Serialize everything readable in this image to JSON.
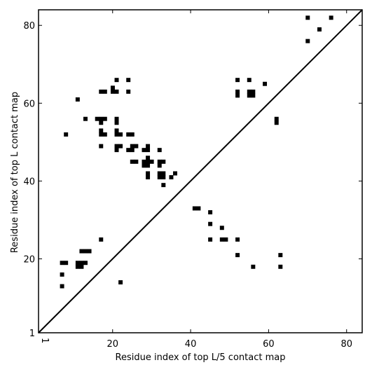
{
  "chart_data": {
    "type": "heatmap",
    "xlabel": "Residue index of top L/5 contact map",
    "ylabel": "Residue index of top L contact map",
    "xlim": [
      1,
      84
    ],
    "ylim": [
      1,
      84
    ],
    "x_ticks": [
      {
        "value": 1,
        "label": "1"
      },
      {
        "value": 20,
        "label": "20"
      },
      {
        "value": 40,
        "label": "40"
      },
      {
        "value": 60,
        "label": "60"
      },
      {
        "value": 80,
        "label": "80"
      }
    ],
    "y_ticks": [
      {
        "value": 1,
        "label": "1"
      },
      {
        "value": 20,
        "label": "20"
      },
      {
        "value": 40,
        "label": "40"
      },
      {
        "value": 60,
        "label": "60"
      },
      {
        "value": 80,
        "label": "80"
      }
    ],
    "diagonal": true,
    "color": "#000000",
    "cells": [
      [
        70,
        82
      ],
      [
        76,
        82
      ],
      [
        73,
        79
      ],
      [
        70,
        76
      ],
      [
        21,
        66
      ],
      [
        24,
        66
      ],
      [
        52,
        66
      ],
      [
        55,
        66
      ],
      [
        59,
        65
      ],
      [
        17,
        63
      ],
      [
        18,
        63
      ],
      [
        20,
        63
      ],
      [
        21,
        63
      ],
      [
        24,
        63
      ],
      [
        52,
        63
      ],
      [
        55,
        63
      ],
      [
        56,
        63
      ],
      [
        20,
        64
      ],
      [
        52,
        62
      ],
      [
        55,
        62
      ],
      [
        56,
        62
      ],
      [
        11,
        61
      ],
      [
        13,
        56
      ],
      [
        16,
        56
      ],
      [
        17,
        56
      ],
      [
        18,
        56
      ],
      [
        21,
        56
      ],
      [
        62,
        56
      ],
      [
        17,
        55
      ],
      [
        21,
        55
      ],
      [
        62,
        55
      ],
      [
        17,
        53
      ],
      [
        21,
        53
      ],
      [
        8,
        52
      ],
      [
        17,
        52
      ],
      [
        18,
        52
      ],
      [
        21,
        52
      ],
      [
        22,
        52
      ],
      [
        24,
        52
      ],
      [
        25,
        52
      ],
      [
        17,
        49
      ],
      [
        21,
        49
      ],
      [
        22,
        49
      ],
      [
        25,
        49
      ],
      [
        26,
        49
      ],
      [
        29,
        49
      ],
      [
        21,
        48
      ],
      [
        24,
        48
      ],
      [
        25,
        48
      ],
      [
        28,
        48
      ],
      [
        29,
        48
      ],
      [
        32,
        48
      ],
      [
        29,
        46
      ],
      [
        25,
        45
      ],
      [
        26,
        45
      ],
      [
        28,
        45
      ],
      [
        29,
        45
      ],
      [
        30,
        45
      ],
      [
        32,
        45
      ],
      [
        33,
        45
      ],
      [
        28,
        44
      ],
      [
        29,
        44
      ],
      [
        32,
        44
      ],
      [
        29,
        42
      ],
      [
        32,
        42
      ],
      [
        33,
        42
      ],
      [
        36,
        42
      ],
      [
        29,
        41
      ],
      [
        32,
        41
      ],
      [
        33,
        41
      ],
      [
        35,
        41
      ],
      [
        33,
        39
      ],
      [
        41,
        33
      ],
      [
        42,
        33
      ],
      [
        45,
        32
      ],
      [
        45,
        29
      ],
      [
        48,
        28
      ],
      [
        17,
        25
      ],
      [
        45,
        25
      ],
      [
        48,
        25
      ],
      [
        49,
        25
      ],
      [
        52,
        25
      ],
      [
        12,
        22
      ],
      [
        13,
        22
      ],
      [
        14,
        22
      ],
      [
        52,
        21
      ],
      [
        63,
        21
      ],
      [
        7,
        19
      ],
      [
        8,
        19
      ],
      [
        11,
        19
      ],
      [
        12,
        19
      ],
      [
        13,
        19
      ],
      [
        11,
        18
      ],
      [
        12,
        18
      ],
      [
        56,
        18
      ],
      [
        63,
        18
      ],
      [
        7,
        16
      ],
      [
        22,
        14
      ],
      [
        7,
        13
      ]
    ]
  }
}
